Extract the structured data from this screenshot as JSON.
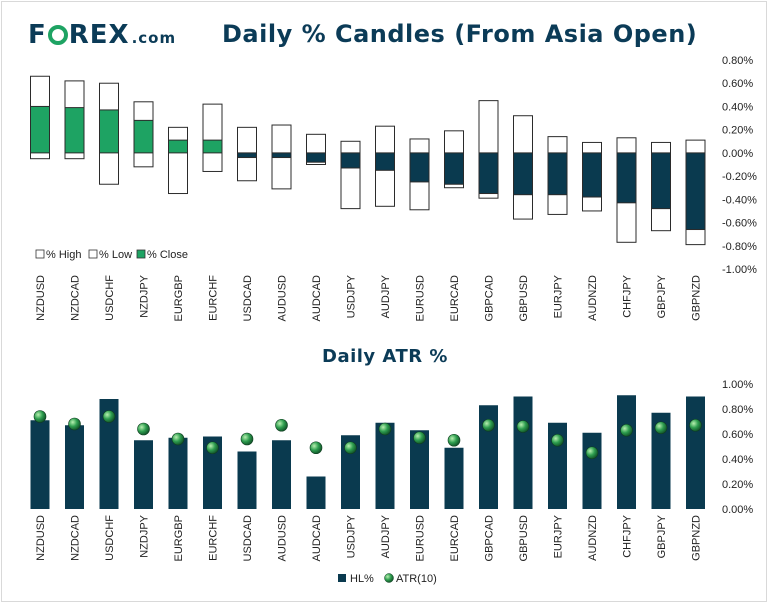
{
  "logo": {
    "brand": "FOREX",
    "brand_pre": "F",
    "brand_post": "REX",
    "suffix": ".com"
  },
  "colors": {
    "navy": "#0b3b57",
    "green": "#1ea363",
    "bar_navy": "#0a3a4f",
    "marker_green": "#2e9e4f"
  },
  "chart_data": [
    {
      "type": "candlestick",
      "title": "Daily % Candles (From Asia Open)",
      "categories": [
        "NZDUSD",
        "NZDCAD",
        "USDCHF",
        "NZDJPY",
        "EURGBP",
        "EURCHF",
        "USDCAD",
        "AUDUSD",
        "AUDCAD",
        "USDJPY",
        "AUDJPY",
        "EURUSD",
        "EURCAD",
        "GBPCAD",
        "GBPUSD",
        "EURJPY",
        "AUDNZD",
        "CHFJPY",
        "GBPJPY",
        "GBPNZD"
      ],
      "series": [
        {
          "name": "% High",
          "values": [
            0.66,
            0.62,
            0.6,
            0.44,
            0.22,
            0.42,
            0.22,
            0.24,
            0.16,
            0.1,
            0.23,
            0.12,
            0.19,
            0.45,
            0.32,
            0.14,
            0.09,
            0.13,
            0.09,
            0.11
          ]
        },
        {
          "name": "% Low",
          "values": [
            -0.05,
            -0.05,
            -0.27,
            -0.12,
            -0.35,
            -0.16,
            -0.24,
            -0.31,
            -0.1,
            -0.48,
            -0.46,
            -0.49,
            -0.3,
            -0.39,
            -0.57,
            -0.53,
            -0.5,
            -0.77,
            -0.67,
            -0.79
          ]
        },
        {
          "name": "% Close",
          "values": [
            0.4,
            0.39,
            0.37,
            0.28,
            0.11,
            0.11,
            -0.04,
            -0.04,
            -0.08,
            -0.13,
            -0.15,
            -0.25,
            -0.27,
            -0.35,
            -0.36,
            -0.36,
            -0.38,
            -0.43,
            -0.48,
            -0.66
          ]
        }
      ],
      "legend": [
        "% High",
        "% Low",
        "% Close"
      ],
      "ylim": [
        -1.0,
        0.8
      ],
      "yticks": [
        "0.80%",
        "0.60%",
        "0.40%",
        "0.20%",
        "0.00%",
        "-0.20%",
        "-0.40%",
        "-0.60%",
        "-0.80%",
        "-1.00%"
      ],
      "legend_position": "bottom-left",
      "grid": false
    },
    {
      "type": "bar",
      "title": "Daily ATR %",
      "categories": [
        "NZDUSD",
        "NZDCAD",
        "USDCHF",
        "NZDJPY",
        "EURGBP",
        "EURCHF",
        "USDCAD",
        "AUDUSD",
        "AUDCAD",
        "USDJPY",
        "AUDJPY",
        "EURUSD",
        "EURCAD",
        "GBPCAD",
        "GBPUSD",
        "EURJPY",
        "AUDNZD",
        "CHFJPY",
        "GBPJPY",
        "GBPNZD"
      ],
      "series": [
        {
          "name": "HL%",
          "type": "bar",
          "values": [
            0.71,
            0.67,
            0.88,
            0.55,
            0.57,
            0.58,
            0.46,
            0.55,
            0.26,
            0.59,
            0.69,
            0.63,
            0.49,
            0.83,
            0.9,
            0.69,
            0.61,
            0.91,
            0.77,
            0.9
          ]
        },
        {
          "name": "ATR(10)",
          "type": "marker",
          "values": [
            0.74,
            0.68,
            0.74,
            0.64,
            0.56,
            0.49,
            0.56,
            0.67,
            0.49,
            0.49,
            0.64,
            0.57,
            0.55,
            0.67,
            0.66,
            0.55,
            0.45,
            0.63,
            0.65,
            0.67
          ]
        }
      ],
      "legend": [
        "HL%",
        "ATR(10)"
      ],
      "ylim": [
        0.0,
        1.0
      ],
      "yticks": [
        "1.00%",
        "0.80%",
        "0.60%",
        "0.40%",
        "0.20%",
        "0.00%"
      ],
      "legend_position": "bottom-center",
      "grid": false
    }
  ]
}
